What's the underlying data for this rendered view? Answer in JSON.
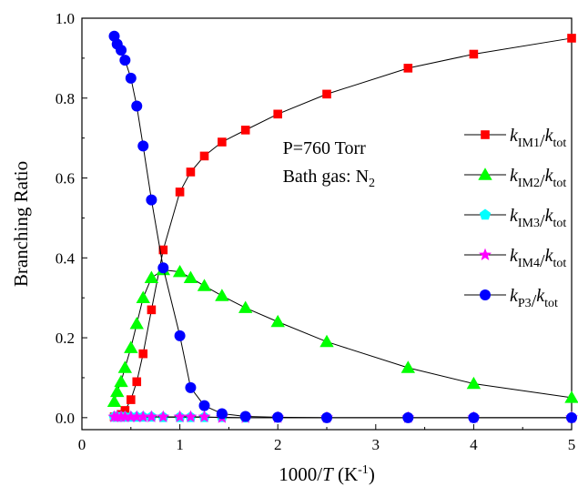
{
  "chart_data": {
    "type": "line",
    "xlabel": {
      "prefix": "1000/",
      "var": "T",
      "unit_open": " (K",
      "unit_sup": "-1",
      "unit_close": ")"
    },
    "ylabel": "Branching Ratio",
    "xlim": [
      0,
      5
    ],
    "ylim": [
      -0.03,
      1.0
    ],
    "xticks": [
      0,
      1,
      2,
      3,
      4,
      5
    ],
    "yticks": [
      0.0,
      0.2,
      0.4,
      0.6,
      0.8,
      1.0
    ],
    "xtick_labels": [
      "0",
      "1",
      "2",
      "3",
      "4",
      "5"
    ],
    "ytick_labels": [
      "0.0",
      "0.2",
      "0.4",
      "0.6",
      "0.8",
      "1.0"
    ],
    "grid": false,
    "legend_position": "right",
    "annotations": [
      {
        "text": "P=760 Torr",
        "at": [
          2.05,
          0.66
        ]
      },
      {
        "text": "Bath gas: N",
        "sub": "2",
        "at": [
          2.05,
          0.59
        ]
      }
    ],
    "x": [
      0.33,
      0.36,
      0.4,
      0.44,
      0.5,
      0.56,
      0.625,
      0.71,
      0.83,
      1.0,
      1.11,
      1.25,
      1.43,
      1.67,
      2.0,
      2.5,
      3.33,
      4.0,
      5.0
    ],
    "series": [
      {
        "name": "kIM1/ktot",
        "label": {
          "k": "k",
          "sub": "IM1",
          "slash": "/",
          "k2": "k",
          "sub2": "tot"
        },
        "marker": "square",
        "color": "#ff0000",
        "values": [
          0.002,
          0.004,
          0.008,
          0.018,
          0.045,
          0.09,
          0.16,
          0.27,
          0.42,
          0.565,
          0.615,
          0.655,
          0.69,
          0.72,
          0.76,
          0.81,
          0.875,
          0.91,
          0.95
        ]
      },
      {
        "name": "kIM2/ktot",
        "label": {
          "k": "k",
          "sub": "IM2",
          "slash": "/",
          "k2": "k",
          "sub2": "tot"
        },
        "marker": "triangle",
        "color": "#00ff00",
        "values": [
          0.04,
          0.065,
          0.09,
          0.125,
          0.175,
          0.235,
          0.3,
          0.35,
          0.37,
          0.365,
          0.35,
          0.33,
          0.305,
          0.275,
          0.24,
          0.19,
          0.125,
          0.085,
          0.05
        ]
      },
      {
        "name": "kIM3/ktot",
        "label": {
          "k": "k",
          "sub": "IM3",
          "slash": "/",
          "k2": "k",
          "sub2": "tot"
        },
        "marker": "pentagon",
        "color": "#00ffff",
        "values": [
          0.002,
          0.002,
          0.002,
          0.002,
          0.002,
          0.002,
          0.002,
          0.002,
          0.001,
          0.001,
          0.001,
          0.001,
          0.001,
          0.0,
          0.0,
          0.0,
          0.0,
          0.0,
          0.0
        ]
      },
      {
        "name": "kIM4/ktot",
        "label": {
          "k": "k",
          "sub": "IM4",
          "slash": "/",
          "k2": "k",
          "sub2": "tot"
        },
        "marker": "star",
        "color": "#ff00ff",
        "values": [
          0.002,
          0.002,
          0.002,
          0.002,
          0.002,
          0.002,
          0.002,
          0.002,
          0.002,
          0.002,
          0.002,
          0.002,
          0.0,
          0.0,
          0.0,
          0.0,
          0.0,
          0.0,
          0.0
        ]
      },
      {
        "name": "kP3/ktot",
        "label": {
          "k": "k",
          "sub": "P3",
          "slash": "/",
          "k2": "k",
          "sub2": "tot"
        },
        "marker": "circle",
        "color": "#0000ff",
        "values": [
          0.955,
          0.935,
          0.92,
          0.895,
          0.85,
          0.78,
          0.68,
          0.545,
          0.375,
          0.205,
          0.075,
          0.03,
          0.01,
          0.003,
          0.001,
          0.0,
          0.0,
          0.0,
          0.0
        ]
      }
    ]
  }
}
